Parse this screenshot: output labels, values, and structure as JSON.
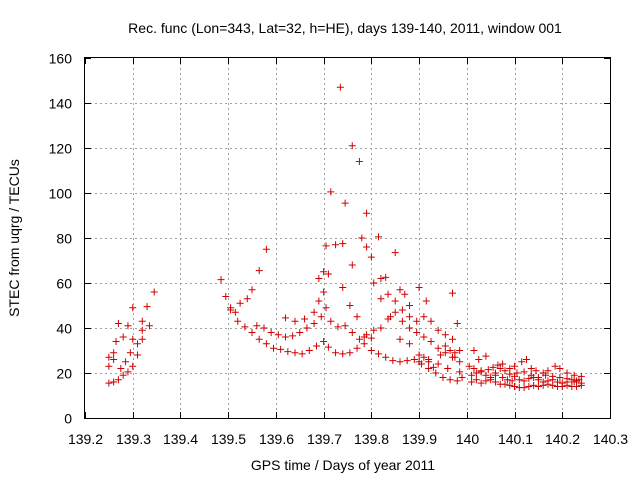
{
  "chart_data": {
    "type": "scatter",
    "title": "Rec. func (Lon=343, Lat=32, h=HE), days 139-140, 2011, window 001",
    "xlabel": "GPS time / Days of year 2011",
    "ylabel": "STEC from uqrg / TECUs",
    "xlim": [
      139.2,
      140.3
    ],
    "ylim": [
      0,
      160
    ],
    "xticks": [
      139.2,
      139.3,
      139.4,
      139.5,
      139.6,
      139.7,
      139.8,
      139.9,
      140.0,
      140.1,
      140.2,
      140.3
    ],
    "xtick_labels": [
      "139.2",
      "139.3",
      "139.4",
      "139.5",
      "139.6",
      "139.7",
      "139.8",
      "139.9",
      "140",
      "140.1",
      "140.2",
      "140.3"
    ],
    "yticks": [
      0,
      20,
      40,
      60,
      80,
      100,
      120,
      140,
      160
    ],
    "ytick_labels": [
      "0",
      "20",
      "40",
      "60",
      "80",
      "100",
      "120",
      "140",
      "160"
    ],
    "grid": true,
    "marker": "+",
    "color": "#d00000",
    "points": [
      [
        139.25,
        15.5
      ],
      [
        139.26,
        16.0
      ],
      [
        139.27,
        17.0
      ],
      [
        139.28,
        19.0
      ],
      [
        139.29,
        20.5
      ],
      [
        139.3,
        23.0
      ],
      [
        139.31,
        28.0
      ],
      [
        139.32,
        35.0
      ],
      [
        139.335,
        41.0
      ],
      [
        139.25,
        23.0
      ],
      [
        139.26,
        26.0
      ],
      [
        139.275,
        22.0
      ],
      [
        139.285,
        25.0
      ],
      [
        139.295,
        29.0
      ],
      [
        139.31,
        33.0
      ],
      [
        139.32,
        39.0
      ],
      [
        139.25,
        27.0
      ],
      [
        139.265,
        34.0
      ],
      [
        139.28,
        36.0
      ],
      [
        139.29,
        41.0
      ],
      [
        139.3,
        49.0
      ],
      [
        139.33,
        49.5
      ],
      [
        139.345,
        56.0
      ],
      [
        139.27,
        42.0
      ],
      [
        139.26,
        29.0
      ],
      [
        139.3,
        35.0
      ],
      [
        139.32,
        43.0
      ],
      [
        139.485,
        61.5
      ],
      [
        139.495,
        54.0
      ],
      [
        139.505,
        49.0
      ],
      [
        139.515,
        47.0
      ],
      [
        139.525,
        51.0
      ],
      [
        139.54,
        53.0
      ],
      [
        139.55,
        57.0
      ],
      [
        139.565,
        65.5
      ],
      [
        139.58,
        75.0
      ],
      [
        139.505,
        48.0
      ],
      [
        139.52,
        43.0
      ],
      [
        139.535,
        40.5
      ],
      [
        139.55,
        38.0
      ],
      [
        139.565,
        35.0
      ],
      [
        139.58,
        33.0
      ],
      [
        139.595,
        31.0
      ],
      [
        139.61,
        30.5
      ],
      [
        139.625,
        29.5
      ],
      [
        139.64,
        29.0
      ],
      [
        139.655,
        28.5
      ],
      [
        139.67,
        30.0
      ],
      [
        139.685,
        32.0
      ],
      [
        139.7,
        34.0
      ],
      [
        139.71,
        31.5
      ],
      [
        139.725,
        29.0
      ],
      [
        139.74,
        28.5
      ],
      [
        139.755,
        29.0
      ],
      [
        139.77,
        31.0
      ],
      [
        139.785,
        33.0
      ],
      [
        139.8,
        30.0
      ],
      [
        139.815,
        28.5
      ],
      [
        139.83,
        27.0
      ],
      [
        139.845,
        25.5
      ],
      [
        139.86,
        25.0
      ],
      [
        139.875,
        25.5
      ],
      [
        139.89,
        26.0
      ],
      [
        139.905,
        24.0
      ],
      [
        139.92,
        22.0
      ],
      [
        139.935,
        20.0
      ],
      [
        139.95,
        18.0
      ],
      [
        139.965,
        17.0
      ],
      [
        139.98,
        16.5
      ],
      [
        139.56,
        41.0
      ],
      [
        139.575,
        40.0
      ],
      [
        139.59,
        38.0
      ],
      [
        139.605,
        37.0
      ],
      [
        139.62,
        36.0
      ],
      [
        139.635,
        36.5
      ],
      [
        139.65,
        38.0
      ],
      [
        139.665,
        40.0
      ],
      [
        139.68,
        42.0
      ],
      [
        139.695,
        45.0
      ],
      [
        139.705,
        49.0
      ],
      [
        139.715,
        43.0
      ],
      [
        139.73,
        40.5
      ],
      [
        139.745,
        41.0
      ],
      [
        139.76,
        38.0
      ],
      [
        139.775,
        35.0
      ],
      [
        139.79,
        37.0
      ],
      [
        139.805,
        39.0
      ],
      [
        139.82,
        40.0
      ],
      [
        139.835,
        44.0
      ],
      [
        139.85,
        47.0
      ],
      [
        139.865,
        43.0
      ],
      [
        139.88,
        40.0
      ],
      [
        139.895,
        38.0
      ],
      [
        139.91,
        36.0
      ],
      [
        139.925,
        34.0
      ],
      [
        139.94,
        31.0
      ],
      [
        139.955,
        29.0
      ],
      [
        139.97,
        27.0
      ],
      [
        139.985,
        25.0
      ],
      [
        139.62,
        44.5
      ],
      [
        139.64,
        43.0
      ],
      [
        139.66,
        44.0
      ],
      [
        139.68,
        47.0
      ],
      [
        139.69,
        52.0
      ],
      [
        139.7,
        56.0
      ],
      [
        139.71,
        64.0
      ],
      [
        139.725,
        77.0
      ],
      [
        139.74,
        58.0
      ],
      [
        139.755,
        50.0
      ],
      [
        139.77,
        45.0
      ],
      [
        139.785,
        36.0
      ],
      [
        139.8,
        35.5
      ],
      [
        139.705,
        76.5
      ],
      [
        139.715,
        100.5
      ],
      [
        139.735,
        147.0
      ],
      [
        139.745,
        95.5
      ],
      [
        139.76,
        121.0
      ],
      [
        139.775,
        114.0
      ],
      [
        139.79,
        91.0
      ],
      [
        139.8,
        71.5
      ],
      [
        139.815,
        80.5
      ],
      [
        139.83,
        62.5
      ],
      [
        139.85,
        73.5
      ],
      [
        139.86,
        57.0
      ],
      [
        139.87,
        55.0
      ],
      [
        139.88,
        50.0
      ],
      [
        139.9,
        58.0
      ],
      [
        139.915,
        52.0
      ],
      [
        139.97,
        55.5
      ],
      [
        139.76,
        68.0
      ],
      [
        139.78,
        80.0
      ],
      [
        139.79,
        76.0
      ],
      [
        139.805,
        60.0
      ],
      [
        139.82,
        53.0
      ],
      [
        139.835,
        55.0
      ],
      [
        139.85,
        52.0
      ],
      [
        139.865,
        48.0
      ],
      [
        139.88,
        45.0
      ],
      [
        139.895,
        43.0
      ],
      [
        139.91,
        45.0
      ],
      [
        139.925,
        43.0
      ],
      [
        139.94,
        39.0
      ],
      [
        139.955,
        37.0
      ],
      [
        139.97,
        35.0
      ],
      [
        139.985,
        30.0
      ],
      [
        139.69,
        62.0
      ],
      [
        139.7,
        65.0
      ],
      [
        139.74,
        77.5
      ],
      [
        139.82,
        62.0
      ],
      [
        139.84,
        45.0
      ],
      [
        139.86,
        35.0
      ],
      [
        139.88,
        33.0
      ],
      [
        139.9,
        28.0
      ],
      [
        139.92,
        26.0
      ],
      [
        139.94,
        24.0
      ],
      [
        139.96,
        22.0
      ],
      [
        139.975,
        27.0
      ],
      [
        139.98,
        42.0
      ],
      [
        139.9,
        25.0
      ],
      [
        139.91,
        27.0
      ],
      [
        139.92,
        25.0
      ],
      [
        139.93,
        22.5
      ],
      [
        139.945,
        28.0
      ],
      [
        139.955,
        32.0
      ],
      [
        139.965,
        30.0
      ],
      [
        139.975,
        29.0
      ],
      [
        139.985,
        20.5
      ],
      [
        139.99,
        18.0
      ],
      [
        140.01,
        16.0
      ],
      [
        140.02,
        17.0
      ],
      [
        140.03,
        15.5
      ],
      [
        140.04,
        16.5
      ],
      [
        140.05,
        17.0
      ],
      [
        140.06,
        16.0
      ],
      [
        140.07,
        15.0
      ],
      [
        140.08,
        15.0
      ],
      [
        140.09,
        14.5
      ],
      [
        140.1,
        14.0
      ],
      [
        140.11,
        13.5
      ],
      [
        140.12,
        13.5
      ],
      [
        140.13,
        14.0
      ],
      [
        140.14,
        14.5
      ],
      [
        140.15,
        14.0
      ],
      [
        140.16,
        14.5
      ],
      [
        140.17,
        15.0
      ],
      [
        140.18,
        14.5
      ],
      [
        140.19,
        14.0
      ],
      [
        140.2,
        14.0
      ],
      [
        140.21,
        14.5
      ],
      [
        140.22,
        14.0
      ],
      [
        140.23,
        14.0
      ],
      [
        140.24,
        14.5
      ],
      [
        140.01,
        19.0
      ],
      [
        140.02,
        20.0
      ],
      [
        140.03,
        21.0
      ],
      [
        140.04,
        19.0
      ],
      [
        140.05,
        18.0
      ],
      [
        140.06,
        20.0
      ],
      [
        140.07,
        22.0
      ],
      [
        140.08,
        21.0
      ],
      [
        140.09,
        19.5
      ],
      [
        140.1,
        18.5
      ],
      [
        140.11,
        17.0
      ],
      [
        140.12,
        16.5
      ],
      [
        140.13,
        17.5
      ],
      [
        140.14,
        18.0
      ],
      [
        140.15,
        17.0
      ],
      [
        140.16,
        16.0
      ],
      [
        140.17,
        16.5
      ],
      [
        140.18,
        17.0
      ],
      [
        140.19,
        16.0
      ],
      [
        140.2,
        15.5
      ],
      [
        140.21,
        16.0
      ],
      [
        140.22,
        17.0
      ],
      [
        140.23,
        16.5
      ],
      [
        140.24,
        15.5
      ],
      [
        140.015,
        30.0
      ],
      [
        140.025,
        26.0
      ],
      [
        140.04,
        27.5
      ],
      [
        140.055,
        22.5
      ],
      [
        140.065,
        23.5
      ],
      [
        140.075,
        24.0
      ],
      [
        140.09,
        22.0
      ],
      [
        140.1,
        23.0
      ],
      [
        140.115,
        25.0
      ],
      [
        140.125,
        26.0
      ],
      [
        140.135,
        22.0
      ],
      [
        140.145,
        21.0
      ],
      [
        140.16,
        20.0
      ],
      [
        140.17,
        21.0
      ],
      [
        140.185,
        23.0
      ],
      [
        140.195,
        22.0
      ],
      [
        140.21,
        20.0
      ],
      [
        140.225,
        19.0
      ],
      [
        140.24,
        18.5
      ],
      [
        140.005,
        23.0
      ],
      [
        140.015,
        22.0
      ],
      [
        140.03,
        20.5
      ],
      [
        140.045,
        21.5
      ],
      [
        140.06,
        19.0
      ],
      [
        140.075,
        18.0
      ],
      [
        140.085,
        17.0
      ],
      [
        140.095,
        16.5
      ],
      [
        140.105,
        20.0
      ],
      [
        140.12,
        20.5
      ],
      [
        140.135,
        19.0
      ],
      [
        140.15,
        18.0
      ],
      [
        140.165,
        19.0
      ],
      [
        140.18,
        18.5
      ],
      [
        140.195,
        18.0
      ],
      [
        140.21,
        17.5
      ],
      [
        140.225,
        16.0
      ],
      [
        140.235,
        17.0
      ]
    ]
  }
}
